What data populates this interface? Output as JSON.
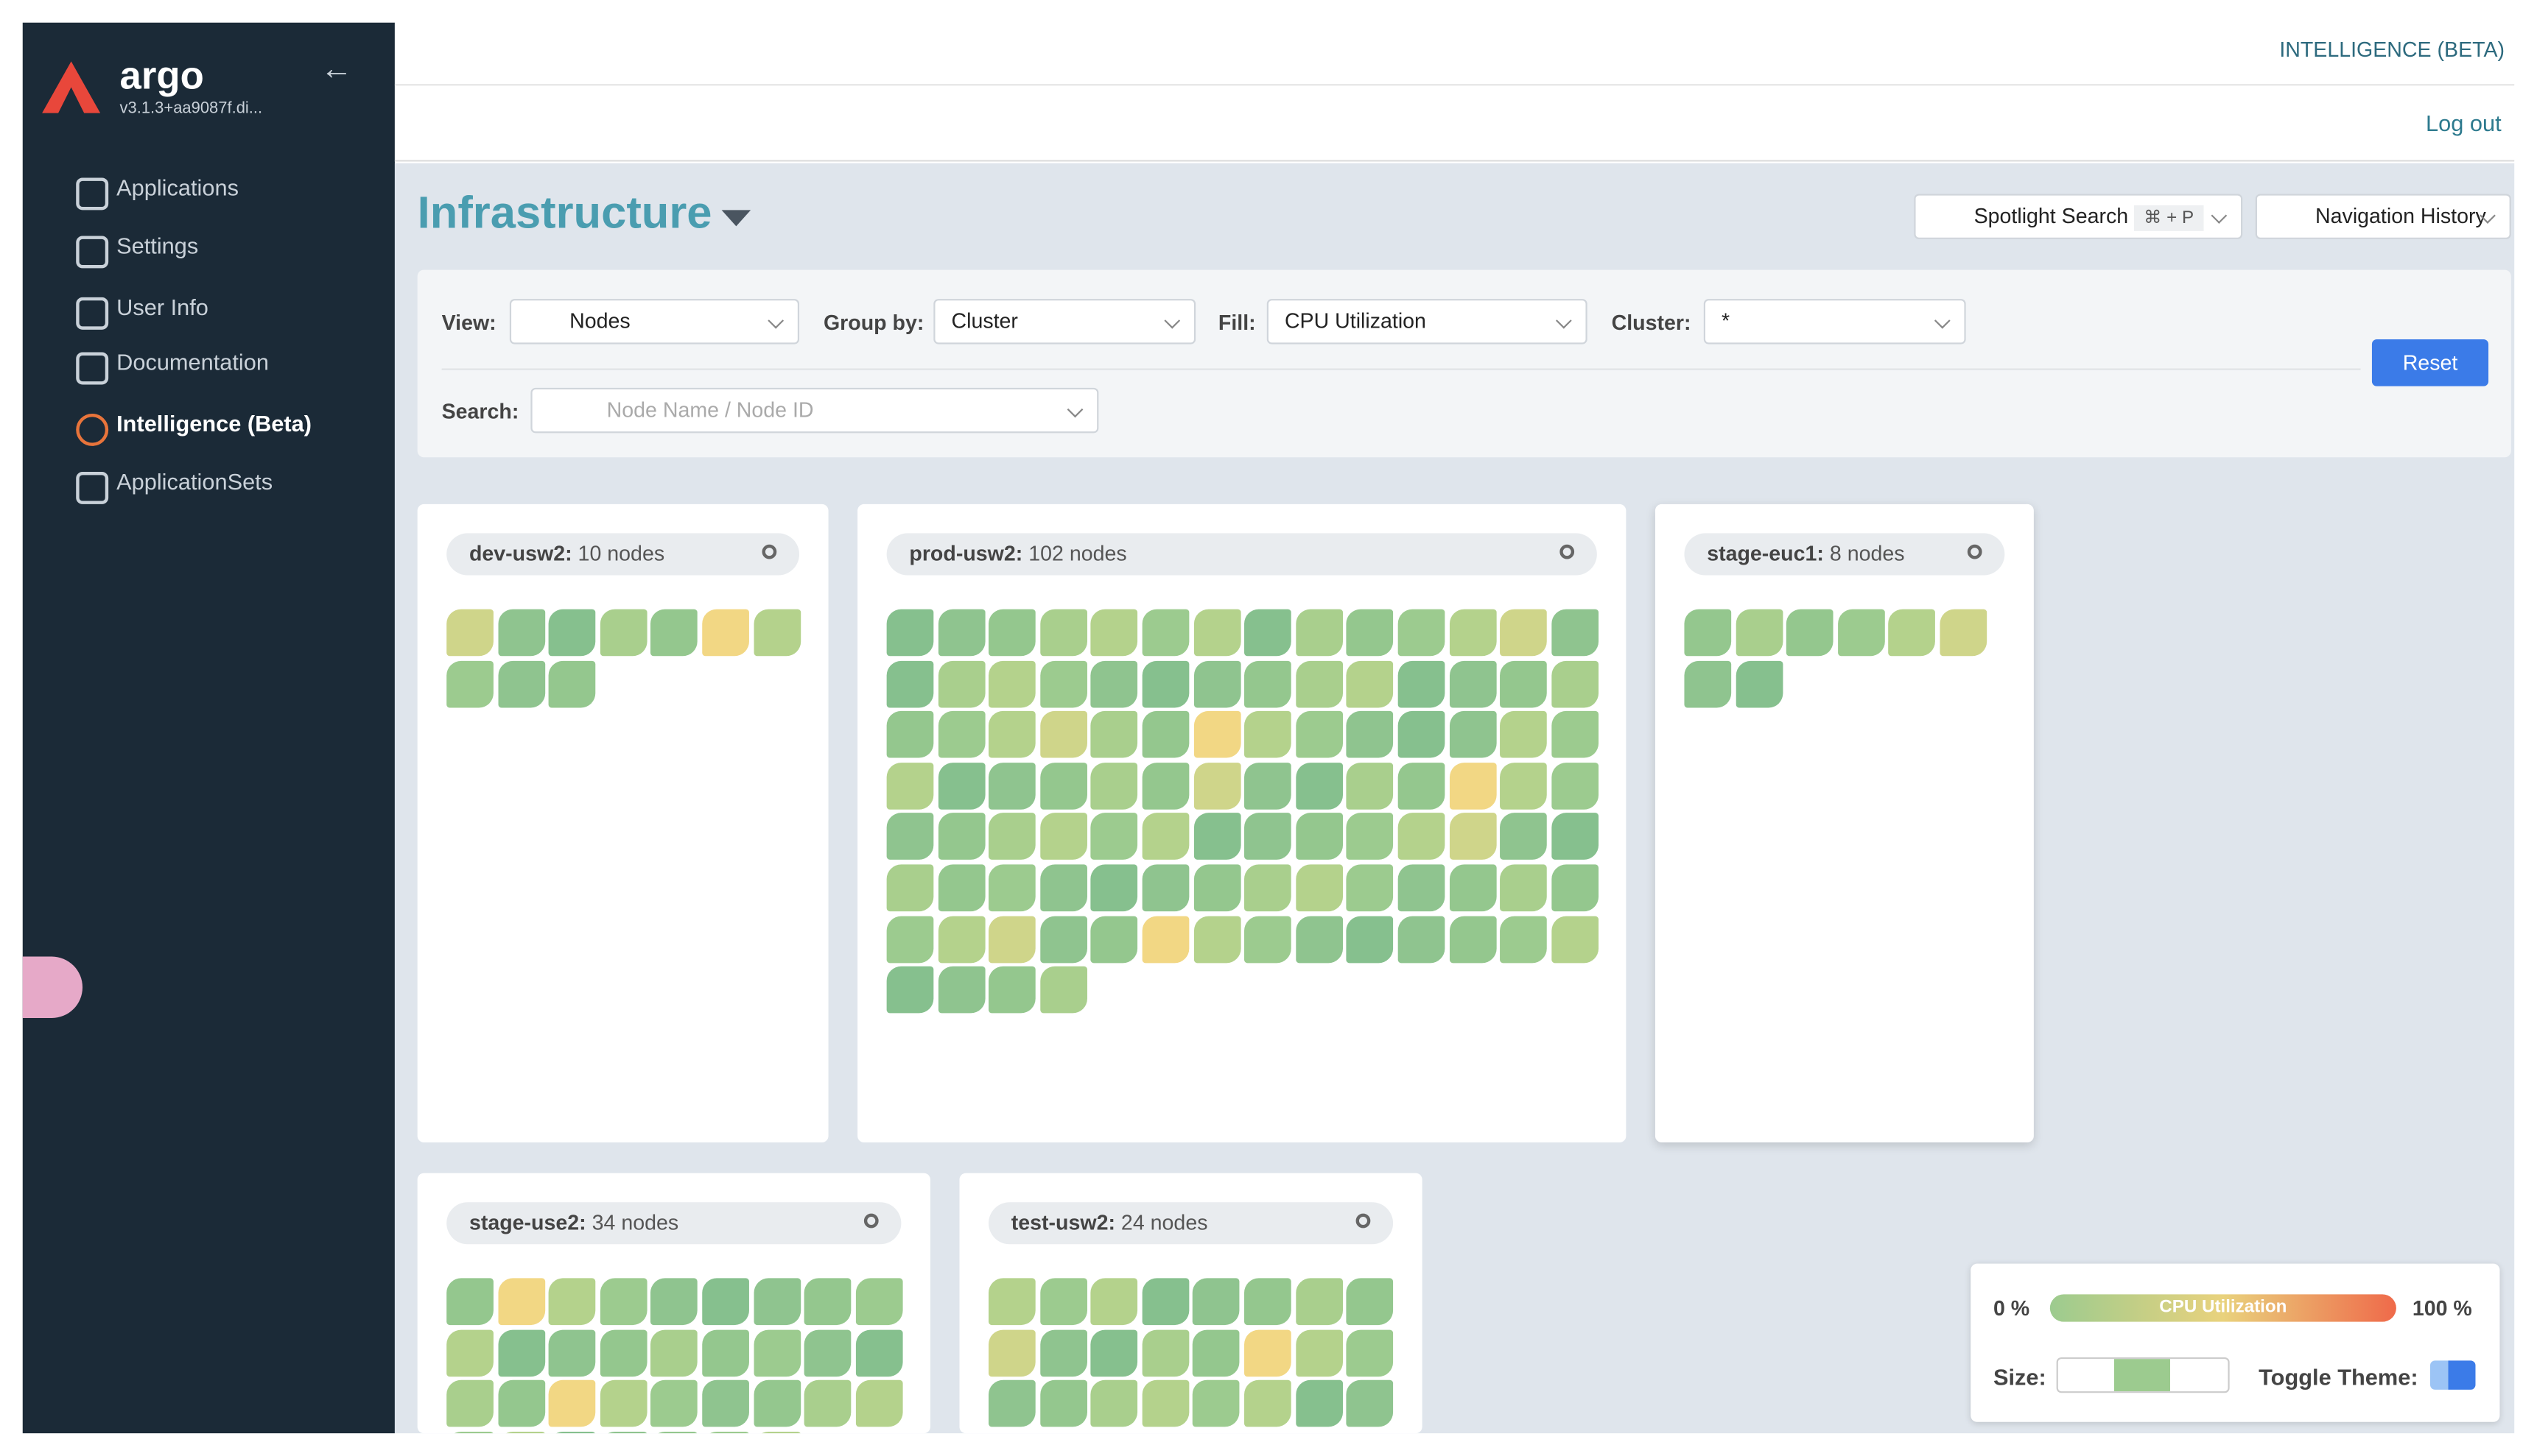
{
  "sidebar": {
    "brand": "argo",
    "version": "v3.1.3+aa9087f.di...",
    "items": [
      "Applications",
      "Settings",
      "User Info",
      "Documentation",
      "Intelligence (Beta)",
      "ApplicationSets"
    ]
  },
  "topbar": {
    "title": "INTELLIGENCE (BETA)",
    "logout": "Log out"
  },
  "page": {
    "title": "Infrastructure",
    "spotlight": "Spotlight Search",
    "shortcut": "⌘ + P",
    "history": "Navigation History"
  },
  "filters": {
    "view_label": "View:",
    "view": "Nodes",
    "group_label": "Group by:",
    "group": "Cluster",
    "fill_label": "Fill:",
    "fill": "CPU Utilization",
    "cluster_label": "Cluster:",
    "cluster": "*",
    "search_label": "Search:",
    "search_placeholder": "Node Name / Node ID",
    "reset": "Reset"
  },
  "clusters": [
    {
      "name": "dev-usw2:",
      "count": 10,
      "unit": "nodes"
    },
    {
      "name": "prod-usw2:",
      "count": 102,
      "unit": "nodes"
    },
    {
      "name": "stage-euc1:",
      "count": 8,
      "unit": "nodes"
    },
    {
      "name": "stage-use2:",
      "count": 34,
      "unit": "nodes"
    },
    {
      "name": "test-usw2:",
      "count": 24,
      "unit": "nodes"
    }
  ],
  "legend": {
    "min": "0 %",
    "label": "CPU Utilization",
    "max": "100 %",
    "size_label": "Size:",
    "theme_label": "Toggle Theme:"
  }
}
